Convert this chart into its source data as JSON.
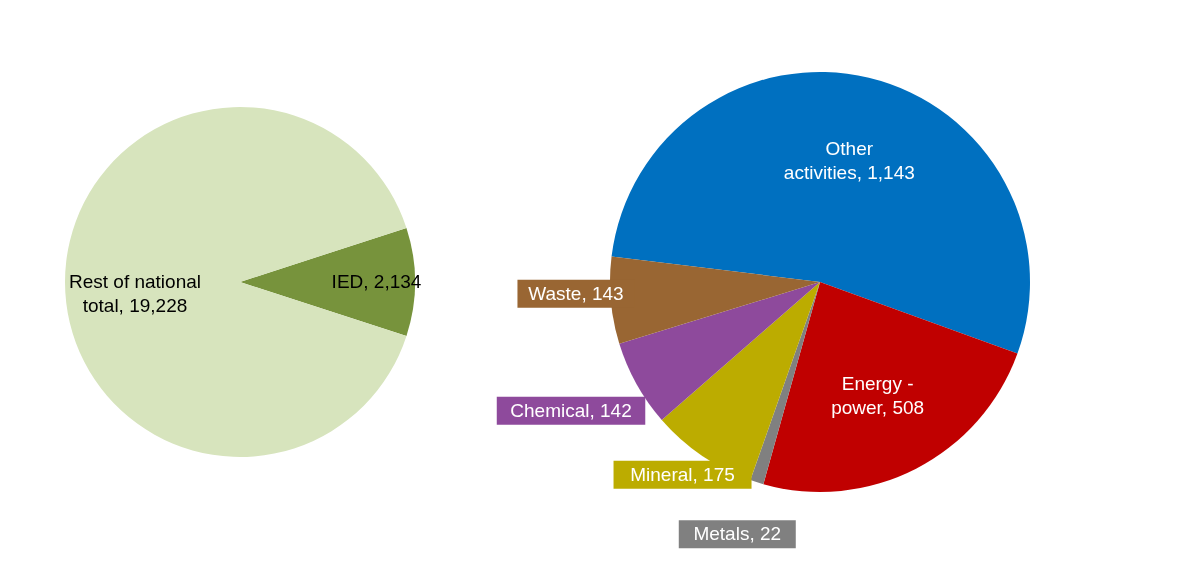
{
  "chart_data": [
    {
      "type": "pie",
      "categories": [
        "IED",
        "Rest of national total"
      ],
      "values": [
        2134,
        19228
      ],
      "value_labels": [
        "2,134",
        "19,228"
      ],
      "colors": [
        "#77933c",
        "#d7e4bd"
      ],
      "data_labels": true,
      "legend": false
    },
    {
      "type": "pie",
      "categories": [
        "Other activities",
        "Energy - power",
        "Metals",
        "Mineral",
        "Chemical",
        "Waste"
      ],
      "values": [
        1143,
        508,
        22,
        175,
        142,
        143
      ],
      "value_labels": [
        "1,143",
        "508",
        "22",
        "175",
        "142",
        "143"
      ],
      "colors": [
        "#0070c0",
        "#c00000",
        "#808080",
        "#bcac00",
        "#8e4a9c",
        "#996633"
      ],
      "data_labels": true,
      "legend": false
    }
  ]
}
